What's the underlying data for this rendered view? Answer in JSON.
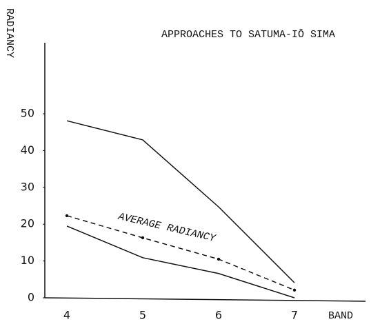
{
  "chart_data": {
    "type": "line",
    "title": "APPROACHES TO SATUMA-IŌ SIMA",
    "y_label": "RADIANCY",
    "x_label": "BAND",
    "categories": [
      "4",
      "5",
      "6",
      "7"
    ],
    "series": [
      {
        "color": "#111111",
        "style": "solid",
        "values": [
          48.1,
          42.9,
          24.7,
          4.1
        ]
      },
      {
        "name": "AVERAGE RADIANCY",
        "color": "#111111",
        "style": "dashed",
        "values": [
          22.3,
          16.3,
          10.5,
          2.1
        ]
      },
      {
        "color": "#111111",
        "style": "solid",
        "values": [
          19.5,
          10.9,
          6.6,
          0
        ]
      }
    ],
    "ylim": [
      0,
      69
    ],
    "yticks": [
      0,
      10,
      20,
      30,
      40,
      50
    ]
  }
}
